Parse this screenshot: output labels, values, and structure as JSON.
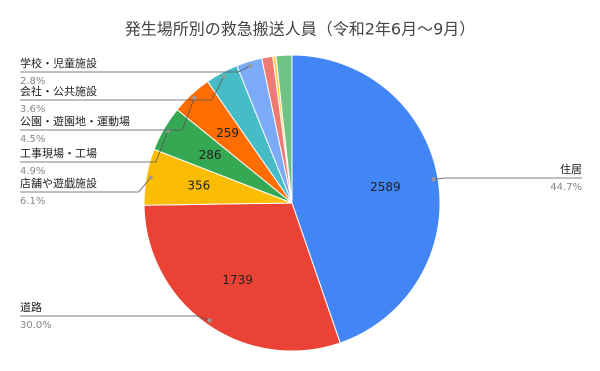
{
  "chart_data": {
    "type": "pie",
    "title": "発生場所別の救急搬送人員（令和2年6月～9月）",
    "categories": [
      "住居",
      "道路",
      "店舗や遊戯施設",
      "工事現場・工場",
      "公園・遊園地・運動場",
      "会社・公共施設",
      "学校・児童施設",
      null,
      null,
      null
    ],
    "values": [
      2589,
      1739,
      356,
      286,
      259,
      208,
      162,
      70,
      20,
      100
    ],
    "percent_labels": [
      "44.7%",
      "30.0%",
      "6.1%",
      "4.9%",
      "4.5%",
      "3.6%",
      "2.8%",
      null,
      null,
      null
    ],
    "colors": [
      "#4285f4",
      "#ea4335",
      "#fbbc04",
      "#34a853",
      "#ff6d01",
      "#46bdc6",
      "#7baaf7",
      "#f07b72",
      "#fcd04f",
      "#71c287"
    ]
  }
}
